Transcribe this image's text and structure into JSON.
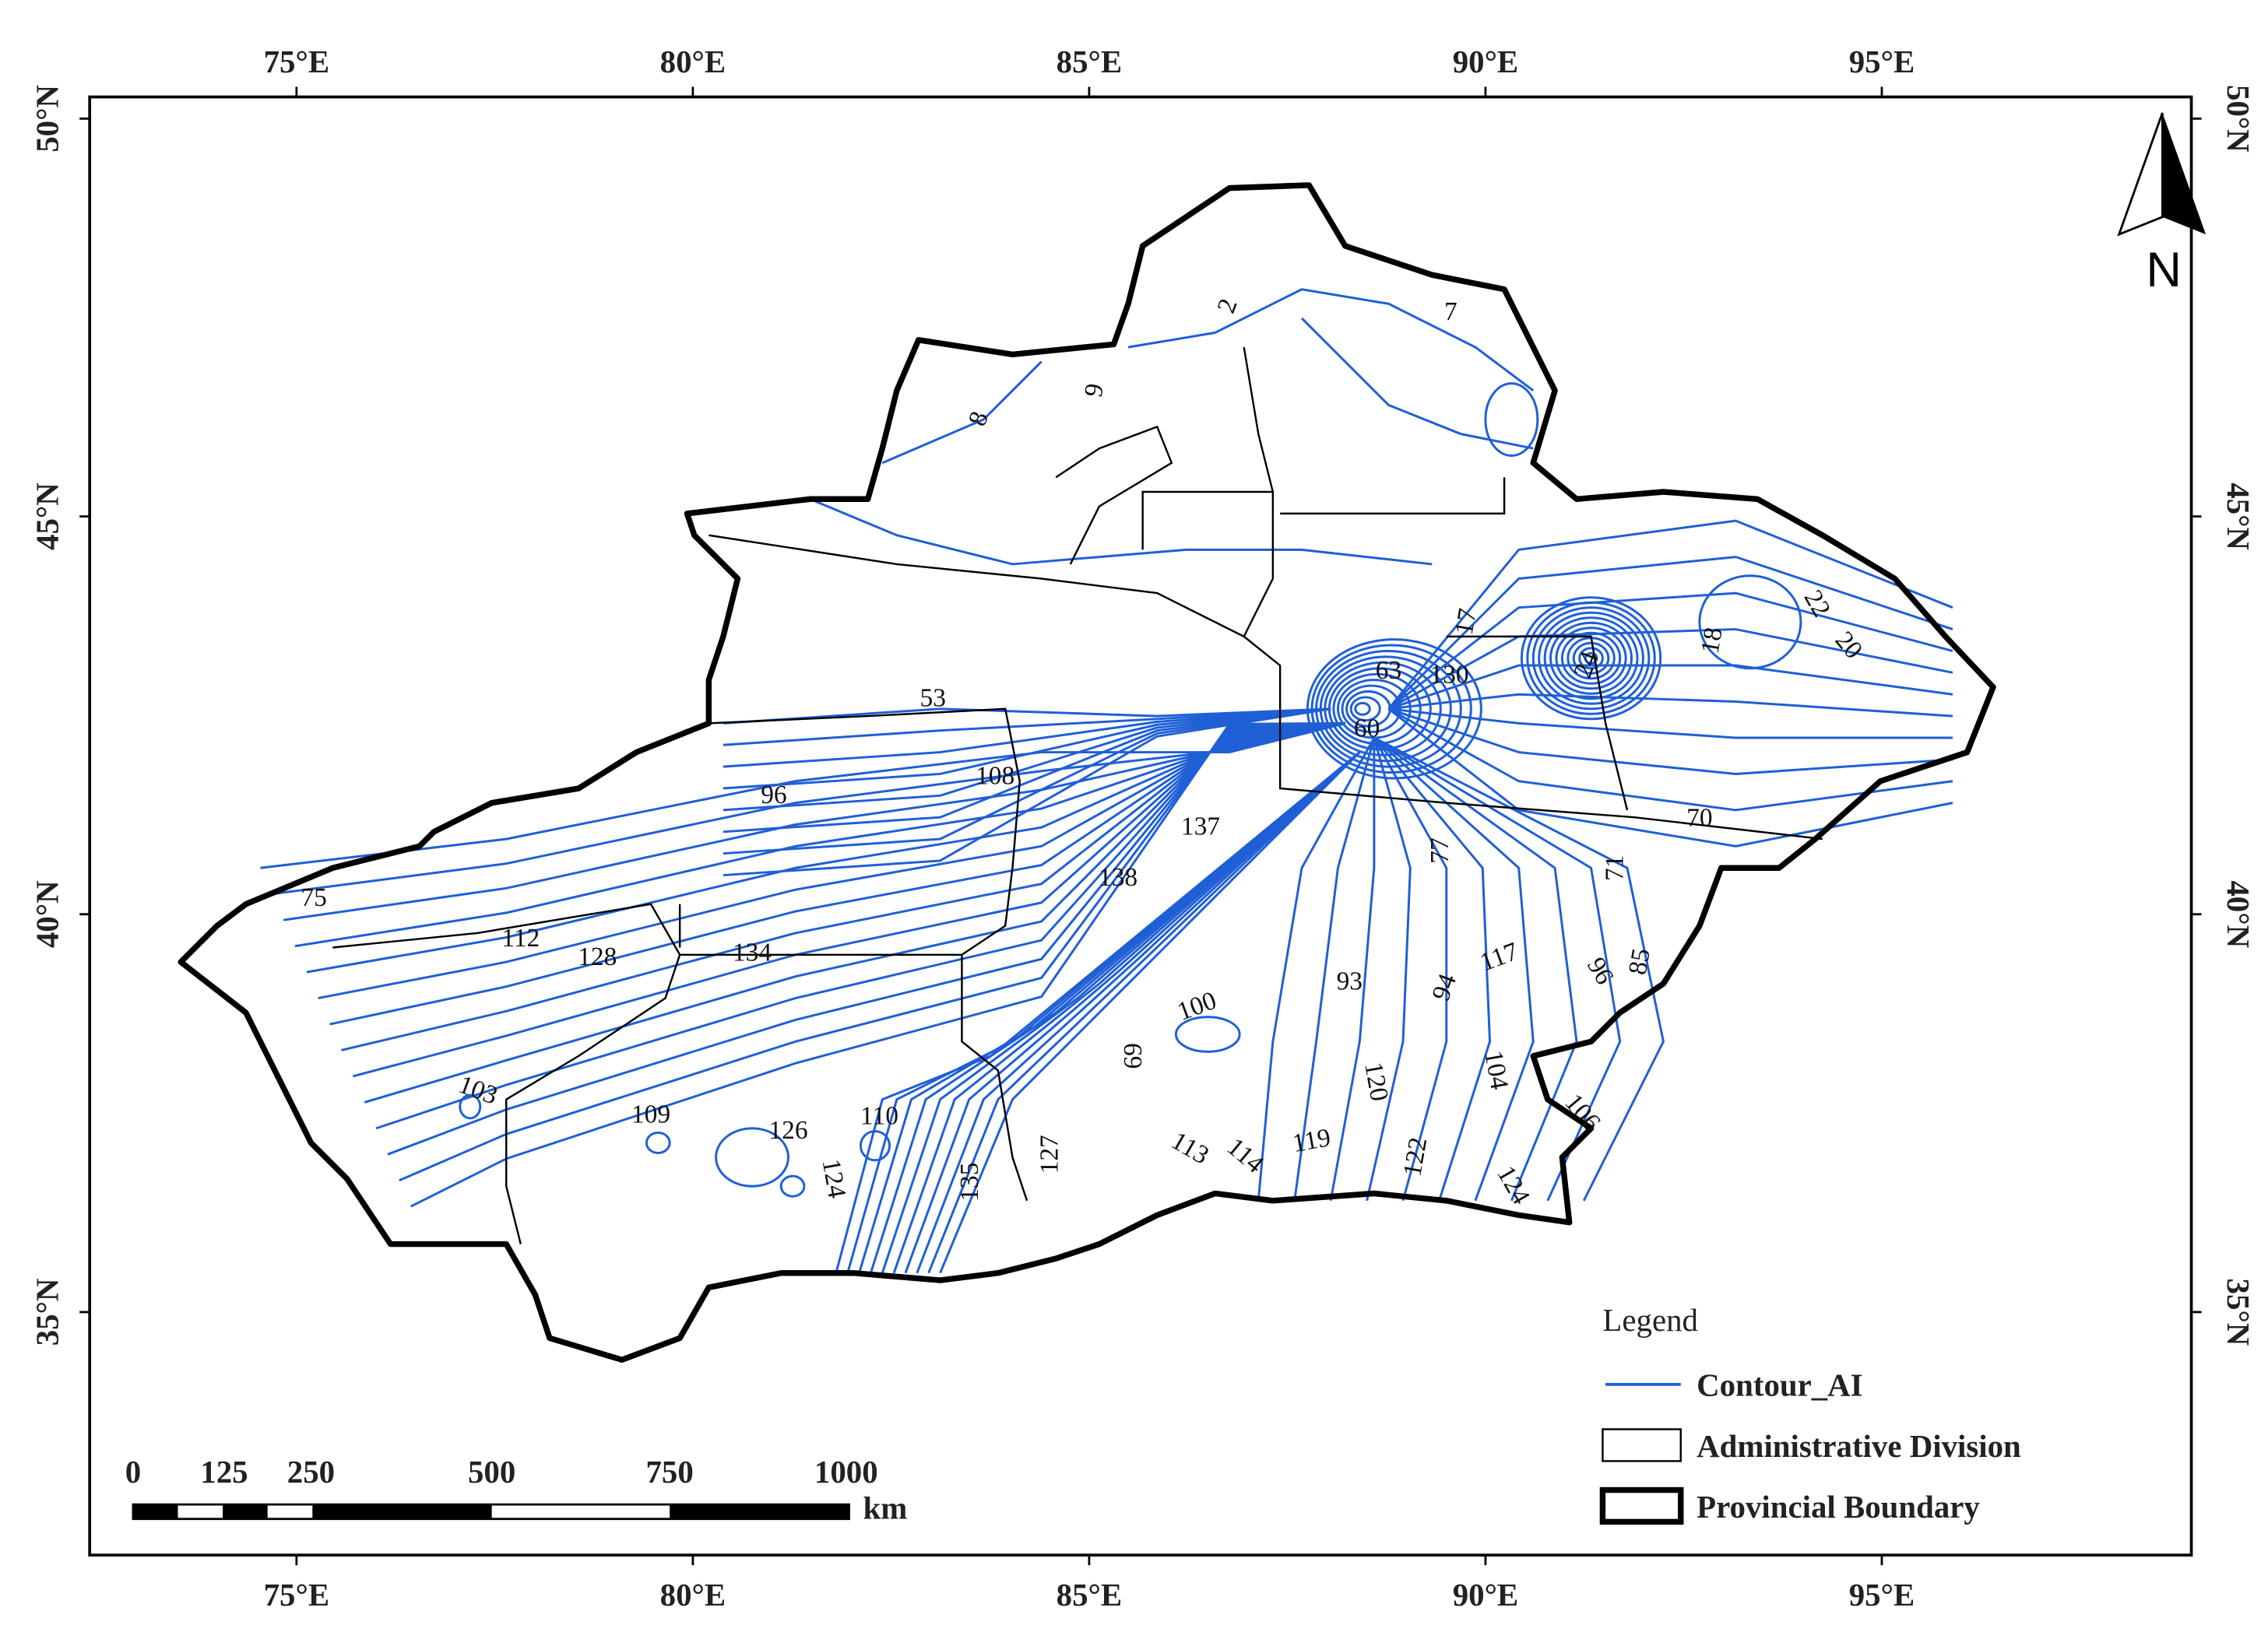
{
  "map": {
    "lon_labels": [
      "75°E",
      "80°E",
      "85°E",
      "90°E",
      "95°E"
    ],
    "lat_labels": [
      "50°N",
      "45°N",
      "40°N",
      "35°N"
    ],
    "north": "N",
    "contour_labels": [
      "2",
      "7",
      "9",
      "8",
      "53",
      "108",
      "96",
      "137",
      "138",
      "75",
      "112",
      "128",
      "134",
      "63",
      "130",
      "60",
      "24",
      "18",
      "22",
      "20",
      "17",
      "70",
      "71",
      "77",
      "93",
      "117",
      "96",
      "85",
      "94",
      "100",
      "69",
      "104",
      "106",
      "120",
      "103",
      "109",
      "126",
      "110",
      "124",
      "135",
      "127",
      "113",
      "114",
      "119",
      "122",
      "124"
    ],
    "scale_bar": {
      "labels": [
        "0",
        "125",
        "250",
        "500",
        "750",
        "1000"
      ],
      "unit": "km"
    },
    "legend": {
      "title": "Legend",
      "items": [
        "Contour_AI",
        "Administrative Division",
        "Provincial Boundary"
      ]
    }
  }
}
